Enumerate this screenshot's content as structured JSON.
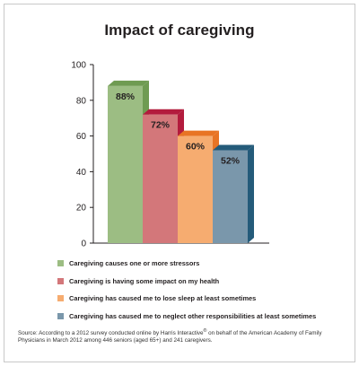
{
  "chart_data": {
    "type": "bar",
    "title": "Impact of caregiving",
    "ylim": [
      0,
      100
    ],
    "yticks": [
      0,
      20,
      40,
      60,
      80,
      100
    ],
    "ytick_labels": [
      "0",
      "20",
      "40",
      "60",
      "80",
      "100"
    ],
    "grid": false,
    "style": "3d",
    "legend_position": "bottom",
    "series": [
      {
        "name": "Caregiving causes one or more stressors",
        "value": 88,
        "label": "88%",
        "color": "#9cbd83",
        "side_color": "#6f9b52"
      },
      {
        "name": "Caregiving is having some impact on my health",
        "value": 72,
        "label": "72%",
        "color": "#d3777a",
        "side_color": "#b31b3d"
      },
      {
        "name": "Caregiving has caused me to lose sleep at least sometimes",
        "value": 60,
        "label": "60%",
        "color": "#f6ac70",
        "side_color": "#e87424"
      },
      {
        "name": "Caregiving has caused me to neglect other responsibilities at least sometimes",
        "value": 52,
        "label": "52%",
        "color": "#7a97ab",
        "side_color": "#245b7a"
      }
    ]
  },
  "source": {
    "pre": "Source: According to a 2012 survey conducted online by Harris Interactive",
    "registered": "®",
    "post": " on behalf of the American Academy of Family Physicians in March 2012 among 446 seniors (aged 65+) and 241 caregivers."
  }
}
